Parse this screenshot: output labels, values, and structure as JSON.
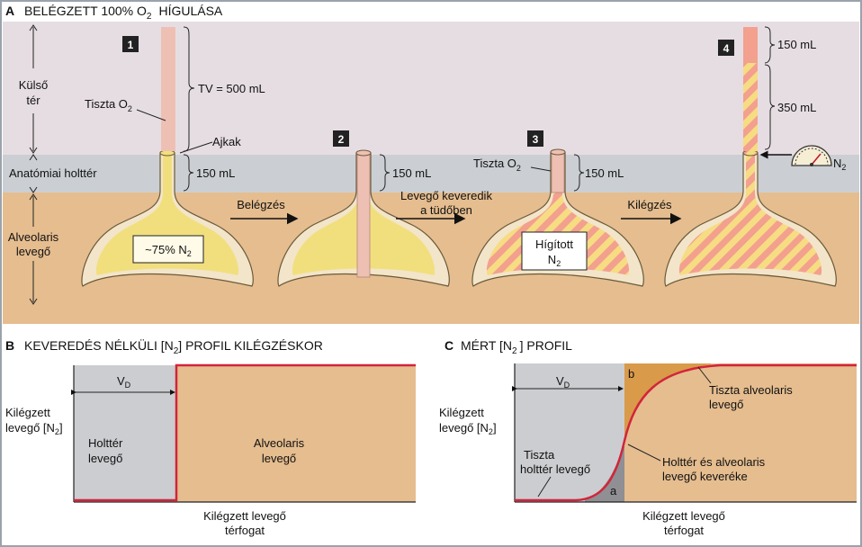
{
  "colors": {
    "outer_space": "#e6dde3",
    "dead_space_band": "#cbcfd3",
    "alveolar_bg": "#e5bd8f",
    "lung_wall": "#f3e5c9",
    "lung_yellow": "#f1df7e",
    "tube_pink": "#eec0b4",
    "stripe_pink": "#f3a08f",
    "stripe_yellow": "#f6dc82",
    "chart_grey": "#cccdd0",
    "chart_tan": "#e5bd8f",
    "curve_red": "#d2243a",
    "region_orange": "#d99a4a",
    "region_dark": "#8f8f94"
  },
  "panel_a": {
    "letter": "A",
    "title_main": "BELÉGZETT 100% O",
    "title_sub": "2",
    "title_end": "HÍGULÁSA",
    "zone_outer_1": "Külső",
    "zone_outer_2": "tér",
    "zone_dead": "Anatómiai holttér",
    "zone_alv_1": "Alveolaris",
    "zone_alv_2": "levegő",
    "steps": [
      "1",
      "2",
      "3",
      "4"
    ],
    "pure_o2_label": "Tiszta O",
    "pure_o2_sub": "2",
    "tv_label": "TV = 500 mL",
    "lips_label": "Ajkak",
    "deadspace_volume": "150 mL",
    "n2_75_label": "~75% N",
    "n2_sub": "2",
    "arrow_inhale": "Belégzés",
    "arrow_mix_1": "Levegő keveredik",
    "arrow_mix_2": "a tüdőben",
    "arrow_exhale": "Kilégzés",
    "diluted_1": "Hígított",
    "diluted_2": "N",
    "diluted_sub": "2",
    "vol_top": "150 mL",
    "vol_mid": "350 mL",
    "n2_meter_label": "N",
    "n2_meter_sub": "2"
  },
  "panel_b": {
    "letter": "B",
    "title_a": "KEVEREDÉS NÉLKÜLI [N",
    "title_sub": "2",
    "title_b": "] PROFIL KILÉGZÉSKOR",
    "vd_main": "V",
    "vd_sub": "D",
    "y_label_1": "Kilégzett",
    "y_label_2": "levegő [N",
    "y_label_sub": "2",
    "y_label_end": "]",
    "dead_1": "Holttér",
    "dead_2": "levegő",
    "alv_1": "Alveolaris",
    "alv_2": "levegő",
    "x_label_1": "Kilégzett levegő",
    "x_label_2": "térfogat"
  },
  "panel_c": {
    "letter": "C",
    "title_a": "MÉRT [N",
    "title_sub": "2",
    "title_b": "] PROFIL",
    "vd_main": "V",
    "vd_sub": "D",
    "y_label_1": "Kilégzett",
    "y_label_2": "levegő [N",
    "y_label_sub": "2",
    "y_label_end": "]",
    "region_a": "a",
    "region_b": "b",
    "pure_dead_1": "Tiszta",
    "pure_dead_2": "holttér levegő",
    "pure_alv_1": "Tiszta alveolaris",
    "pure_alv_2": "levegő",
    "mix_1": "Holttér és alveolaris",
    "mix_2": "levegő keveréke",
    "x_label_1": "Kilégzett levegő",
    "x_label_2": "térfogat"
  }
}
